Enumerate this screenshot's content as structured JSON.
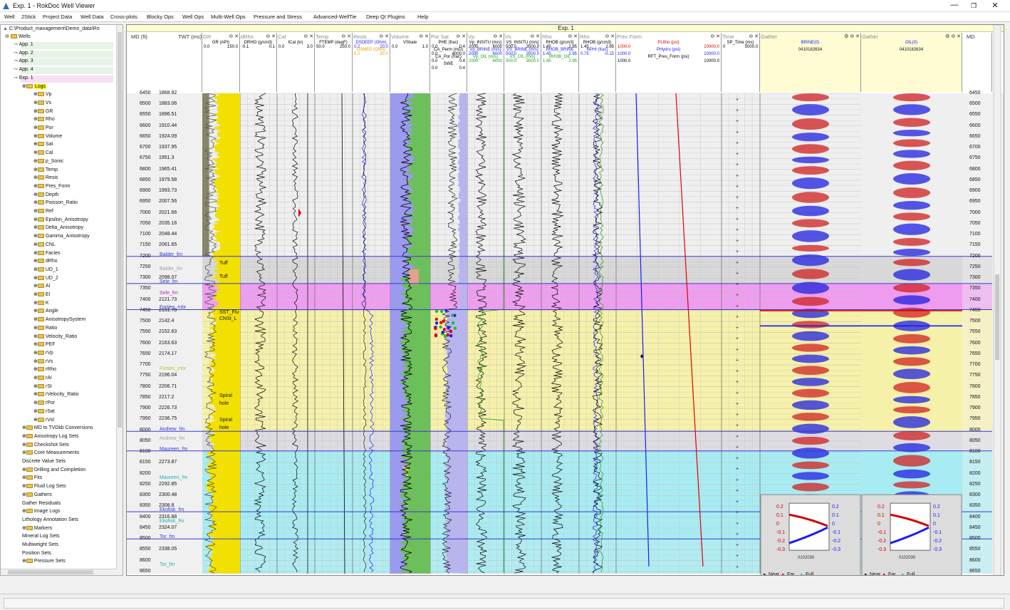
{
  "window": {
    "title": "Exp. 1 - RokDoc Well Viewer",
    "buttons": [
      "—",
      "❐",
      "✕"
    ]
  },
  "menu": [
    "Well",
    "2Stick",
    "Project Data",
    "Well Data",
    "Cross-plots",
    "Blocky Ops",
    "Well Ops",
    "Multi-Well Ops",
    "Pressure and Stress",
    "Advanced-WellTie",
    "Deep QI",
    "Plugins",
    "Help"
  ],
  "tree": {
    "root": "C:\\Product_management\\Demo_data\\Ro",
    "wells": "Wells",
    "items": [
      {
        "label": "App. 1",
        "type": "well",
        "indent": 1,
        "hl": "#e6f3e6"
      },
      {
        "label": "App. 2",
        "type": "well",
        "indent": 1,
        "hl": "#e6f3e6"
      },
      {
        "label": "App. 3",
        "type": "well",
        "indent": 1,
        "hl": "#e6f3e6"
      },
      {
        "label": "App. 4",
        "type": "well",
        "indent": 1,
        "hl": "#e6f3e6"
      },
      {
        "label": "Exp. 1",
        "type": "well",
        "indent": 1,
        "hl": "#f7dff4"
      },
      {
        "label": "Logs",
        "type": "folder",
        "indent": 2,
        "hl": "#fff600"
      },
      {
        "label": "Vp",
        "type": "log",
        "indent": 3
      },
      {
        "label": "Vs",
        "type": "log",
        "indent": 3
      },
      {
        "label": "GR",
        "type": "log",
        "indent": 3
      },
      {
        "label": "Rho",
        "type": "log",
        "indent": 3
      },
      {
        "label": "Por",
        "type": "log",
        "indent": 3
      },
      {
        "label": "Volume",
        "type": "log",
        "indent": 3
      },
      {
        "label": "Sat",
        "type": "log",
        "indent": 3
      },
      {
        "label": "Cal",
        "type": "log",
        "indent": 3
      },
      {
        "label": "p_Sonic",
        "type": "log",
        "indent": 3
      },
      {
        "label": "Temp",
        "type": "log",
        "indent": 3
      },
      {
        "label": "Resis",
        "type": "log",
        "indent": 3
      },
      {
        "label": "Pres_Form",
        "type": "log",
        "indent": 3
      },
      {
        "label": "Depth",
        "type": "log",
        "indent": 3
      },
      {
        "label": "Poisson_Ratio",
        "type": "log",
        "indent": 3
      },
      {
        "label": "Ref",
        "type": "log",
        "indent": 3
      },
      {
        "label": "Epsilon_Anisotropy",
        "type": "log",
        "indent": 3
      },
      {
        "label": "Delta_Anisotropy",
        "type": "log",
        "indent": 3
      },
      {
        "label": "Gamma_Anisotropy",
        "type": "log",
        "indent": 3
      },
      {
        "label": "CNL",
        "type": "log",
        "indent": 3
      },
      {
        "label": "Facies",
        "type": "log",
        "indent": 3
      },
      {
        "label": "dRho",
        "type": "log",
        "indent": 3
      },
      {
        "label": "UD_1",
        "type": "log",
        "indent": 3
      },
      {
        "label": "UD_2",
        "type": "log",
        "indent": 3
      },
      {
        "label": "AI",
        "type": "log",
        "indent": 3
      },
      {
        "label": "EI",
        "type": "log",
        "indent": 3
      },
      {
        "label": "K",
        "type": "log",
        "indent": 3
      },
      {
        "label": "Angle",
        "type": "log",
        "indent": 3
      },
      {
        "label": "AnisotropySystem",
        "type": "log",
        "indent": 3
      },
      {
        "label": "Ratio",
        "type": "log",
        "indent": 3
      },
      {
        "label": "Velocity_Ratio",
        "type": "log",
        "indent": 3
      },
      {
        "label": "PEF",
        "type": "log",
        "indent": 3
      },
      {
        "label": "rVp",
        "type": "log",
        "indent": 3
      },
      {
        "label": "rVs",
        "type": "log",
        "indent": 3
      },
      {
        "label": "rRho",
        "type": "log",
        "indent": 3
      },
      {
        "label": "rAI",
        "type": "log",
        "indent": 3
      },
      {
        "label": "rSI",
        "type": "log",
        "indent": 3
      },
      {
        "label": "rVelocity_Ratio",
        "type": "log",
        "indent": 3
      },
      {
        "label": "rPor",
        "type": "log",
        "indent": 3
      },
      {
        "label": "rSat",
        "type": "log",
        "indent": 3
      },
      {
        "label": "rVsl",
        "type": "log",
        "indent": 3
      },
      {
        "label": "MD to TVDkb Conversions",
        "type": "folder",
        "indent": 2
      },
      {
        "label": "Anisotropy Log Sets",
        "type": "folder",
        "indent": 2
      },
      {
        "label": "Checkshot Sets",
        "type": "folder",
        "indent": 2
      },
      {
        "label": "Core Measurements",
        "type": "folder",
        "indent": 2
      },
      {
        "label": "Discrete Value Sets",
        "type": "plain",
        "indent": 2
      },
      {
        "label": "Drilling and Completion",
        "type": "folder",
        "indent": 2
      },
      {
        "label": "Fits",
        "type": "folder",
        "indent": 2
      },
      {
        "label": "Fluid Log Sets",
        "type": "folder",
        "indent": 2
      },
      {
        "label": "Gathers",
        "type": "folder",
        "indent": 2
      },
      {
        "label": "Gather Residuals",
        "type": "plain",
        "indent": 2
      },
      {
        "label": "Image Logs",
        "type": "folder",
        "indent": 2
      },
      {
        "label": "Lithology Annotation Sets",
        "type": "plain",
        "indent": 2
      },
      {
        "label": "Markers",
        "type": "folder",
        "indent": 2
      },
      {
        "label": "Mineral Log Sets",
        "type": "plain",
        "indent": 2
      },
      {
        "label": "Multiweight Sets",
        "type": "plain",
        "indent": 2
      },
      {
        "label": "Position Sets",
        "type": "plain",
        "indent": 2
      },
      {
        "label": "Pressure Sets",
        "type": "folder",
        "indent": 2
      }
    ]
  },
  "viewer": {
    "title": "Exp. 1",
    "md_header": "MD (ft)",
    "twt_header": "TWT (ms)",
    "md_right_header": "MD",
    "md_values": [
      "6450",
      "6500",
      "6550",
      "6600",
      "6650",
      "6700",
      "6750",
      "6800",
      "6850",
      "6900",
      "6950",
      "7000",
      "7050",
      "7100",
      "7150",
      "7200",
      "7250",
      "7300",
      "7350",
      "7400",
      "7450",
      "7500",
      "7550",
      "7600",
      "7650",
      "7700",
      "7750",
      "7800",
      "7850",
      "7900",
      "7950",
      "8000",
      "8050",
      "8100",
      "8150",
      "8200",
      "8250",
      "8300",
      "8350",
      "8400",
      "8450",
      "8500",
      "8550",
      "8600",
      "8650"
    ],
    "twt_values": [
      "1868.92",
      "1883.06",
      "1896.51",
      "1910.44",
      "1924.09",
      "1937.95",
      "1951.3",
      "1965.41",
      "1979.58",
      "1993.73",
      "2007.56",
      "2021.66",
      "2035.16",
      "2048.44",
      "2061.65",
      "",
      "",
      "2098.07",
      "",
      "2121.73",
      "2131.78",
      "2142.4",
      "2152.63",
      "2163.63",
      "2174.17",
      "",
      "2196.04",
      "2206.71",
      "2217.2",
      "2226.73",
      "2236.75",
      "",
      "",
      "",
      "2273.87",
      "",
      "2292.85",
      "2300.48",
      "2308.8",
      "2316.88",
      "2324.07",
      "",
      "2338.05",
      "",
      ""
    ],
    "tracks": [
      {
        "name": "GR",
        "curves": [
          {
            "label": "GR (API)",
            "min": "0.0",
            "max": "150.0",
            "color": "#000"
          }
        ]
      },
      {
        "name": "dRho",
        "curves": [
          {
            "label": "DRHO (g/cm3)",
            "min": "-0.1",
            "max": "0.1",
            "color": "#000"
          }
        ]
      },
      {
        "name": "Cal",
        "curves": [
          {
            "label": "ICal (in)",
            "min": "0.0",
            "max": "3.0",
            "color": "#000"
          }
        ]
      },
      {
        "name": "Temp",
        "curves": [
          {
            "label": "FTEMP (degF)",
            "min": "50.0",
            "max": "250.0",
            "color": "#000"
          }
        ]
      },
      {
        "name": "Resis",
        "curves": [
          {
            "label": "DSDEEP (Ohm)",
            "min": "0.2",
            "max": "20.0",
            "color": "#1a1aff"
          },
          {
            "label": "DSMED (Ohm)",
            "min": "0.2",
            "max": "20.0",
            "color": "#e0a000"
          }
        ]
      },
      {
        "name": "Volume",
        "curves": [
          {
            "label": "VShale",
            "min": "0.0",
            "max": "1.0",
            "color": "#000"
          }
        ]
      },
      {
        "name": "Por Sat",
        "curves": [
          {
            "label": "PHE (frac)",
            "min": "0.0",
            "max": "0.4",
            "color": "#000"
          },
          {
            "label": "CA_Perm (mD)",
            "min": "0.0",
            "max": "4000.0",
            "color": "#000"
          },
          {
            "label": "CA_Por (frac)",
            "min": "0.0",
            "max": "0.4",
            "color": "#000"
          },
          {
            "label": "SWE",
            "min": "0.0",
            "max": "0.4",
            "color": "#000"
          }
        ]
      },
      {
        "name": "Vp",
        "curves": [
          {
            "label": "Vp_INSITU (m/s)",
            "min": "2000",
            "max": "6000",
            "color": "#000"
          },
          {
            "label": "Vp_BRINE (m/s)",
            "min": "2000",
            "max": "6000",
            "color": "#1a1aff"
          },
          {
            "label": "Vp_OIL (m/s)",
            "min": "2000",
            "max": "6000",
            "color": "#1aa01a"
          }
        ]
      },
      {
        "name": "Vs",
        "curves": [
          {
            "label": "VS_INSITU (m/s)",
            "min": "500.0",
            "max": "3500.0",
            "color": "#000"
          },
          {
            "label": "VS_BRINE (m/s)",
            "min": "500.0",
            "max": "3500.0",
            "color": "#1a1aff"
          },
          {
            "label": "VS_OIL (m/s)",
            "min": "500.0",
            "max": "3500.0",
            "color": "#1aa01a"
          }
        ]
      },
      {
        "name": "Rho",
        "curves": [
          {
            "label": "RHOB (g/cm3)",
            "min": "1.45",
            "max": "2.95",
            "color": "#000"
          },
          {
            "label": "RHOB_BRINE",
            "min": "1.45",
            "max": "2.95",
            "color": "#1a1aff"
          },
          {
            "label": "RHOB_OIL",
            "min": "1.45",
            "max": "2.95",
            "color": "#1aa01a"
          }
        ]
      },
      {
        "name": "Rho",
        "curves": [
          {
            "label": "RHOB (g/cm3)",
            "min": "1.45",
            "max": "2.95",
            "color": "#000"
          },
          {
            "label": "NPHI (frac)",
            "min": "0.75",
            "max": "-0.15",
            "color": "#1a1aff"
          }
        ]
      },
      {
        "name": "Pres Form",
        "curves": [
          {
            "label": "PLitho (psi)",
            "min": "1000.0",
            "max": "10000.0",
            "color": "#e00000"
          },
          {
            "label": "PHydro (psi)",
            "min": "1000.0",
            "max": "10000.0",
            "color": "#1a1aff"
          },
          {
            "label": "RFT_Pres_Form (psi)",
            "min": "1000.0",
            "max": "10000.0",
            "color": "#000"
          }
        ]
      },
      {
        "name": "Time",
        "curves": [
          {
            "label": "SP_Time (ms)",
            "min": "0",
            "max": "5000.0",
            "color": "#000"
          }
        ]
      },
      {
        "name": "Gather",
        "curves": [
          {
            "label": "BRINE(0)",
            "min": "",
            "max": "",
            "color": "#1a1aff"
          }
        ],
        "id": "0410182634"
      },
      {
        "name": "Gather",
        "curves": [
          {
            "label": "OIL(0)",
            "min": "",
            "max": "",
            "color": "#1a1aff"
          }
        ],
        "id": "0410182634"
      }
    ],
    "markers": [
      {
        "name": "Balder_fm",
        "md": 7200,
        "color": "#3b3bd0"
      },
      {
        "name": "Sele_fm",
        "md": 7325,
        "color": "#3b3bd0"
      },
      {
        "name": "Forties_mbr",
        "md": 7445,
        "color": "#3b3bd0"
      },
      {
        "name": "Andrew_fm",
        "md": 8005,
        "color": "#3b3bd0"
      },
      {
        "name": "Maureen_fm",
        "md": 8095,
        "color": "#3b3bd0"
      },
      {
        "name": "Ekofisk_fm",
        "md": 8375,
        "color": "#3b3bd0"
      },
      {
        "name": "Tor_fm",
        "md": 8500,
        "color": "#3b3bd0"
      }
    ],
    "zones": [
      {
        "name": "Balder_fm",
        "from": 7200,
        "to": 7325,
        "color": "#d8d8d8"
      },
      {
        "name": "Sele_fm",
        "from": 7325,
        "to": 7445,
        "color": "#ef9cf0"
      },
      {
        "name": "Forties_mbr",
        "from": 7445,
        "to": 8005,
        "color": "#f6f1a9"
      },
      {
        "name": "Andrew_fm",
        "from": 8005,
        "to": 8095,
        "color": "#dcdce2"
      },
      {
        "name": "Maureen_fm",
        "from": 8095,
        "to": 8375,
        "color": "#a7ecf2"
      },
      {
        "name": "Ekofisk_fm",
        "from": 8375,
        "to": 8500,
        "color": "#a7ecf2"
      },
      {
        "name": "Tor_fm",
        "from": 8500,
        "to": 8660,
        "color": "#b0ecf2"
      }
    ],
    "zone_labels": [
      {
        "text": "Balder_fm",
        "md": 7260,
        "color": "#a0a0a0"
      },
      {
        "text": "Sele_fm",
        "md": 7370,
        "color": "#c020c0"
      },
      {
        "text": "Forties_mbr",
        "md": 7720,
        "color": "#c0c040"
      },
      {
        "text": "Andrew_fm",
        "md": 8040,
        "color": "#a0a0a0"
      },
      {
        "text": "Maureen_fm",
        "md": 8220,
        "color": "#20b0b0"
      },
      {
        "text": "Ekofisk_fm",
        "md": 8420,
        "color": "#20b0b0"
      },
      {
        "text": "Tor_fm",
        "md": 8620,
        "color": "#20b0b0"
      }
    ],
    "lith_labels": [
      {
        "text": "Tuff",
        "md": 7235
      },
      {
        "text": "Tuff",
        "md": 7295
      },
      {
        "text": "SST_Flu",
        "md": 7460
      },
      {
        "text": "CNSt_L",
        "md": 7490
      },
      {
        "text": "Spiral",
        "md": 7845
      },
      {
        "text": "hole",
        "md": 7880
      },
      {
        "text": "Spiral",
        "md": 7955
      },
      {
        "text": "hole",
        "md": 7990
      }
    ],
    "avo": {
      "y_ticks_left": [
        "0.2",
        "0.1",
        "0",
        "-0.1",
        "-0.2",
        "-0.3"
      ],
      "y_ticks_right": [
        "0.2",
        "0.1",
        "0",
        "-0.1",
        "-0.2",
        "-0.3"
      ],
      "x_ticks": "0102030",
      "legend": [
        "Near",
        "Far",
        "Full"
      ],
      "legend_colors": [
        "#222",
        "#d00090",
        "#40b0e0"
      ]
    },
    "colors": {
      "gr_fill": "#f2e000",
      "vshale_green": "#6cbf5a",
      "vshale_yellow": "#f6ee40",
      "vshale_blue": "#9a9aee",
      "vshale_salmon": "#e4a090",
      "plitho": "#e00000",
      "phydro": "#1a1aff",
      "gather_red": "#d02020",
      "gather_blue": "#2020e0",
      "tree_hl_exp": "#f7dff4",
      "tree_hl_logs": "#fff600"
    }
  }
}
